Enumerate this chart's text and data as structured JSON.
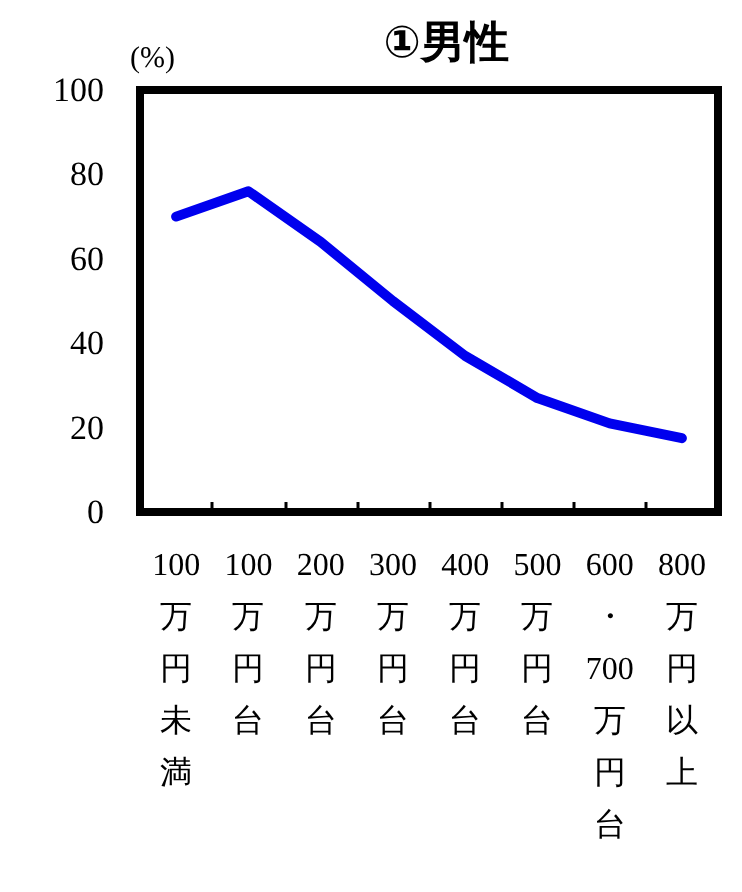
{
  "chart_data": {
    "type": "line",
    "title": "①男性",
    "ylabel": "(%)",
    "categories": [
      "100万円未満",
      "100万円台",
      "200万円台",
      "300万円台",
      "400万円台",
      "500万円台",
      "600・700万円台",
      "800万円以上"
    ],
    "series": [
      {
        "color": "#0000ee",
        "values": [
          70,
          76,
          64,
          50,
          37,
          27,
          21,
          17.5
        ]
      }
    ],
    "ylim": [
      0,
      100
    ],
    "yticks": [
      0,
      20,
      40,
      60,
      80,
      100
    ],
    "grid": false,
    "marker": "none",
    "line_style": "solid"
  }
}
